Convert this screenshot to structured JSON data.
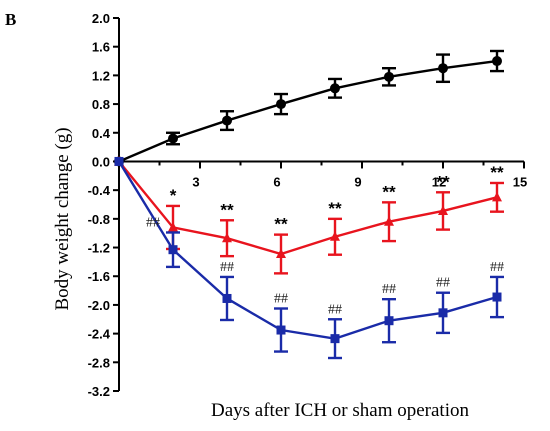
{
  "panel_label": "B",
  "chart_data": {
    "type": "line",
    "title": "",
    "xlabel": "Days after ICH or sham operation",
    "ylabel": "Body weight change (g)",
    "xlim": [
      0,
      15
    ],
    "ylim": [
      -3.2,
      2.0
    ],
    "x_ticks": [
      3,
      6,
      9,
      12,
      15
    ],
    "y_ticks": [
      2.0,
      1.6,
      1.2,
      0.8,
      0.4,
      0.0,
      -0.4,
      -0.8,
      -1.2,
      -1.6,
      -2.0,
      -2.4,
      -2.8,
      -3.2
    ],
    "x_tick_labels": [
      "3",
      "6",
      "9",
      "12",
      "15"
    ],
    "y_tick_labels": [
      "2.0",
      "1.6",
      "1.2",
      "0.8",
      "0.4",
      "0.0",
      "-0.4",
      "-0.8",
      "-1.2",
      "-1.6",
      "-2.0",
      "-2.4",
      "-2.8",
      "-3.2"
    ],
    "grid": false,
    "legend": "none",
    "series": [
      {
        "color": "#000000",
        "marker": "circle",
        "x": [
          0,
          2,
          4,
          6,
          8,
          10,
          12,
          14
        ],
        "y": [
          0.0,
          0.32,
          0.57,
          0.8,
          1.02,
          1.18,
          1.3,
          1.4
        ],
        "err": [
          0.0,
          0.08,
          0.13,
          0.14,
          0.13,
          0.12,
          0.19,
          0.14
        ]
      },
      {
        "color": "#e8141e",
        "marker": "triangle",
        "x": [
          0,
          2,
          4,
          6,
          8,
          10,
          12,
          14
        ],
        "y": [
          0.0,
          -0.92,
          -1.07,
          -1.29,
          -1.05,
          -0.84,
          -0.69,
          -0.5
        ],
        "err": [
          0.0,
          0.3,
          0.25,
          0.27,
          0.25,
          0.27,
          0.26,
          0.2
        ],
        "annotations": [
          "",
          "*",
          "**",
          "**",
          "**",
          "**",
          "**",
          "**"
        ]
      },
      {
        "color": "#1a2ba8",
        "marker": "square",
        "x": [
          0,
          2,
          4,
          6,
          8,
          10,
          12,
          14
        ],
        "y": [
          0.0,
          -1.23,
          -1.91,
          -2.35,
          -2.47,
          -2.22,
          -2.11,
          -1.89
        ],
        "err": [
          0.0,
          0.24,
          0.3,
          0.3,
          0.27,
          0.3,
          0.28,
          0.28
        ],
        "annotations": [
          "",
          "##",
          "##",
          "##",
          "##",
          "##",
          "##",
          "##"
        ]
      }
    ]
  }
}
